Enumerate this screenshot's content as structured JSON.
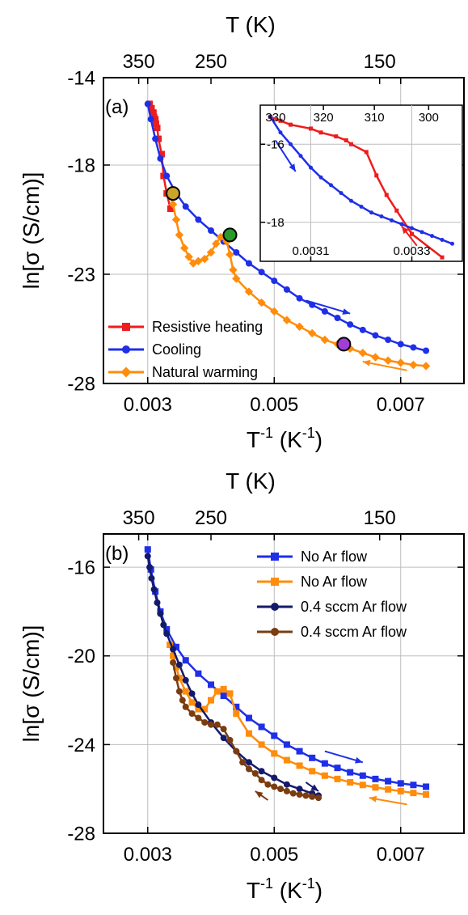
{
  "chart_data": [
    {
      "type": "scatter",
      "panel_label": "(a)",
      "xlabel_main": "T",
      "xlabel_sup": "-1",
      "xlabel_unit": " (K",
      "xlabel_unit_sup": "-1",
      "xlabel_close": ")",
      "ylabel": "ln[σ (S/cm)]",
      "top_xlabel": "T (K)",
      "xlim": [
        0.0023,
        0.008
      ],
      "ylim": [
        -28,
        -14
      ],
      "xticks": [
        0.003,
        0.005,
        0.007
      ],
      "xtick_labels": [
        "0.003",
        "0.005",
        "0.007"
      ],
      "yticks": [
        -28,
        -23,
        -18,
        -14
      ],
      "ytick_labels": [
        "-28",
        "-23",
        "-18",
        "-14"
      ],
      "top_ticks": [
        350,
        250,
        150
      ],
      "top_tick_labels": [
        "350",
        "250",
        "150"
      ],
      "grid": true,
      "legend_position": "bottom-left",
      "series": [
        {
          "name": "Resistive heating",
          "color": "#ee1c1c",
          "marker": "square",
          "x": [
            0.00303,
            0.00306,
            0.00309,
            0.0031,
            0.00312,
            0.00313,
            0.00315,
            0.00317,
            0.00322,
            0.00325,
            0.0033,
            0.00336
          ],
          "y": [
            -15.2,
            -15.4,
            -15.6,
            -15.8,
            -15.9,
            -16.1,
            -16.3,
            -16.8,
            -17.5,
            -18.5,
            -19.3,
            -20.0
          ]
        },
        {
          "name": "Cooling",
          "color": "#1f2fe8",
          "marker": "circle",
          "x": [
            0.003,
            0.00305,
            0.00312,
            0.0032,
            0.0033,
            0.00345,
            0.0036,
            0.0038,
            0.004,
            0.0042,
            0.0044,
            0.0046,
            0.0048,
            0.005,
            0.0052,
            0.0054,
            0.0056,
            0.0058,
            0.006,
            0.0062,
            0.0064,
            0.0066,
            0.0068,
            0.007,
            0.0072,
            0.0074
          ],
          "y": [
            -15.2,
            -15.9,
            -16.8,
            -17.7,
            -18.5,
            -19.3,
            -19.9,
            -20.5,
            -21.0,
            -21.5,
            -22.0,
            -22.5,
            -22.9,
            -23.3,
            -23.7,
            -24.1,
            -24.4,
            -24.7,
            -25.0,
            -25.3,
            -25.55,
            -25.8,
            -26.0,
            -26.2,
            -26.35,
            -26.5
          ]
        },
        {
          "name": "Natural warming",
          "color": "#ff8c0a",
          "marker": "diamond",
          "x": [
            0.00335,
            0.0034,
            0.00345,
            0.0035,
            0.00358,
            0.00365,
            0.00372,
            0.0038,
            0.0039,
            0.004,
            0.00408,
            0.00415,
            0.0042,
            0.00425,
            0.0043,
            0.00435,
            0.0044,
            0.0046,
            0.0048,
            0.005,
            0.0052,
            0.0054,
            0.0056,
            0.0058,
            0.006,
            0.0062,
            0.0064,
            0.0066,
            0.0068,
            0.007,
            0.0072,
            0.0074
          ],
          "y": [
            -19.3,
            -19.8,
            -20.5,
            -21.2,
            -21.8,
            -22.2,
            -22.5,
            -22.4,
            -22.3,
            -22.0,
            -21.6,
            -21.3,
            -21.3,
            -21.5,
            -22.1,
            -22.8,
            -23.2,
            -23.8,
            -24.3,
            -24.7,
            -25.1,
            -25.4,
            -25.7,
            -26.0,
            -26.2,
            -26.4,
            -26.6,
            -26.8,
            -26.95,
            -27.05,
            -27.15,
            -27.2
          ]
        }
      ],
      "highlight_points": [
        {
          "x": 0.0034,
          "y": -19.3,
          "color": "#c9a62a"
        },
        {
          "x": 0.0043,
          "y": -21.2,
          "color": "#2a9a2a"
        },
        {
          "x": 0.0061,
          "y": -26.2,
          "color": "#a23ed6"
        }
      ],
      "annotation_arrows": [
        {
          "color": "#1f2fe8",
          "x1": 0.0055,
          "y1": -24.2,
          "x2": 0.0062,
          "y2": -24.8
        },
        {
          "color": "#ff8c0a",
          "x1": 0.0071,
          "y1": -27.4,
          "x2": 0.0064,
          "y2": -27.0
        }
      ],
      "inset": {
        "xlim": [
          0.003,
          0.0034
        ],
        "ylim": [
          -19.0,
          -15.0
        ],
        "xticks": [
          0.0031,
          0.0033
        ],
        "xtick_labels": [
          "0.0031",
          "0.0033"
        ],
        "yticks": [
          -18,
          -16
        ],
        "ytick_labels": [
          "-18",
          "-16"
        ],
        "top_ticks": [
          330,
          320,
          310,
          300
        ],
        "top_tick_labels": [
          "330",
          "320",
          "310",
          "300"
        ],
        "series": [
          {
            "name": "Resistive heating",
            "color": "#ee1c1c",
            "marker": "square",
            "x": [
              0.00302,
              0.00304,
              0.00306,
              0.0031,
              0.00312,
              0.00315,
              0.00317,
              0.00318,
              0.00321,
              0.00323,
              0.00325,
              0.00327,
              0.0033,
              0.00336
            ],
            "y": [
              -15.3,
              -15.4,
              -15.5,
              -15.6,
              -15.7,
              -15.8,
              -15.9,
              -16.0,
              -16.2,
              -16.8,
              -17.3,
              -17.7,
              -18.3,
              -18.9
            ]
          },
          {
            "name": "Cooling",
            "color": "#1f2fe8",
            "marker": "circle",
            "x": [
              0.00302,
              0.00304,
              0.00306,
              0.00308,
              0.0031,
              0.00312,
              0.00314,
              0.00316,
              0.00318,
              0.0032,
              0.00322,
              0.00324,
              0.00326,
              0.00328,
              0.0033,
              0.00332,
              0.00334,
              0.00336,
              0.00338
            ],
            "y": [
              -15.3,
              -15.7,
              -16.0,
              -16.3,
              -16.6,
              -16.85,
              -17.05,
              -17.25,
              -17.45,
              -17.6,
              -17.75,
              -17.85,
              -17.95,
              -18.05,
              -18.15,
              -18.25,
              -18.35,
              -18.45,
              -18.55
            ]
          }
        ],
        "annotation_arrows": [
          {
            "color": "#1f2fe8",
            "x1": 0.00303,
            "y1": -15.9,
            "x2": 0.00307,
            "y2": -16.7
          },
          {
            "color": "#ee1c1c",
            "x1": 0.00331,
            "y1": -18.6,
            "x2": 0.00328,
            "y2": -18.1
          }
        ]
      }
    },
    {
      "type": "scatter",
      "panel_label": "(b)",
      "xlabel_main": "T",
      "xlabel_sup": "-1",
      "xlabel_unit": " (K",
      "xlabel_unit_sup": "-1",
      "xlabel_close": ")",
      "ylabel": "ln[σ (S/cm)]",
      "top_xlabel": "T (K)",
      "xlim": [
        0.0023,
        0.008
      ],
      "ylim": [
        -28,
        -14.5
      ],
      "xticks": [
        0.003,
        0.005,
        0.007
      ],
      "xtick_labels": [
        "0.003",
        "0.005",
        "0.007"
      ],
      "yticks": [
        -28,
        -24,
        -20,
        -16
      ],
      "ytick_labels": [
        "-28",
        "-24",
        "-20",
        "-16"
      ],
      "top_ticks": [
        350,
        250,
        150
      ],
      "top_tick_labels": [
        "350",
        "250",
        "150"
      ],
      "grid": true,
      "legend_position": "top-right",
      "series": [
        {
          "name": "No Ar flow",
          "color": "#1f2fe8",
          "marker": "square",
          "x": [
            0.003,
            0.00305,
            0.00312,
            0.0032,
            0.0033,
            0.00345,
            0.0036,
            0.0038,
            0.004,
            0.0042,
            0.0044,
            0.0046,
            0.0048,
            0.005,
            0.0052,
            0.0054,
            0.0056,
            0.0058,
            0.006,
            0.0062,
            0.0064,
            0.0066,
            0.0068,
            0.007,
            0.0072,
            0.0074
          ],
          "y": [
            -15.2,
            -16.1,
            -17.1,
            -18.0,
            -18.8,
            -19.6,
            -20.2,
            -20.8,
            -21.3,
            -21.8,
            -22.3,
            -22.8,
            -23.2,
            -23.6,
            -24.0,
            -24.3,
            -24.6,
            -24.85,
            -25.05,
            -25.25,
            -25.4,
            -25.55,
            -25.65,
            -25.75,
            -25.82,
            -25.9
          ]
        },
        {
          "name": "No Ar flow",
          "color": "#ff8c0a",
          "marker": "square",
          "x": [
            0.00335,
            0.0034,
            0.00345,
            0.0035,
            0.0036,
            0.0037,
            0.0038,
            0.0039,
            0.004,
            0.0041,
            0.0042,
            0.0043,
            0.0044,
            0.0046,
            0.0048,
            0.005,
            0.0052,
            0.0054,
            0.0056,
            0.0058,
            0.006,
            0.0062,
            0.0064,
            0.0066,
            0.0068,
            0.007,
            0.0072,
            0.0074
          ],
          "y": [
            -19.5,
            -20.0,
            -20.5,
            -21.0,
            -21.6,
            -22.1,
            -22.4,
            -22.4,
            -22.0,
            -21.6,
            -21.5,
            -21.7,
            -22.6,
            -23.5,
            -24.0,
            -24.4,
            -24.7,
            -24.95,
            -25.2,
            -25.4,
            -25.55,
            -25.7,
            -25.82,
            -25.93,
            -26.02,
            -26.1,
            -26.18,
            -26.25
          ]
        },
        {
          "name": "0.4 sccm Ar flow",
          "color": "#141a6b",
          "marker": "circle",
          "x": [
            0.003,
            0.00303,
            0.00306,
            0.0031,
            0.00315,
            0.0032,
            0.00325,
            0.0033,
            0.0034,
            0.0035,
            0.0036,
            0.0037,
            0.0038,
            0.004,
            0.0042,
            0.0044,
            0.0046,
            0.0048,
            0.005,
            0.0052,
            0.0054,
            0.0056,
            0.0057
          ],
          "y": [
            -15.5,
            -16.0,
            -16.5,
            -17.0,
            -17.6,
            -18.1,
            -18.6,
            -19.0,
            -19.7,
            -20.4,
            -21.1,
            -21.7,
            -22.2,
            -23.0,
            -23.7,
            -24.3,
            -24.8,
            -25.2,
            -25.5,
            -25.8,
            -26.0,
            -26.2,
            -26.3
          ]
        },
        {
          "name": "0.4 sccm Ar flow",
          "color": "#7a3d10",
          "marker": "circle",
          "x": [
            0.0034,
            0.00345,
            0.0035,
            0.00355,
            0.0036,
            0.0037,
            0.0038,
            0.0039,
            0.004,
            0.0041,
            0.0042,
            0.0043,
            0.0044,
            0.0045,
            0.0046,
            0.0047,
            0.0048,
            0.0049,
            0.005,
            0.0051,
            0.0052,
            0.0053,
            0.0054,
            0.0055,
            0.0056,
            0.0057
          ],
          "y": [
            -20.3,
            -21.0,
            -21.6,
            -22.0,
            -22.3,
            -22.6,
            -22.8,
            -23.0,
            -23.1,
            -23.1,
            -23.3,
            -23.8,
            -24.3,
            -24.8,
            -25.1,
            -25.3,
            -25.6,
            -25.8,
            -25.9,
            -26.0,
            -26.1,
            -26.2,
            -26.25,
            -26.3,
            -26.35,
            -26.4
          ]
        }
      ],
      "annotation_arrows": [
        {
          "color": "#1f2fe8",
          "x1": 0.0058,
          "y1": -24.3,
          "x2": 0.0064,
          "y2": -24.8
        },
        {
          "color": "#ff8c0a",
          "x1": 0.0071,
          "y1": -26.7,
          "x2": 0.0065,
          "y2": -26.4
        },
        {
          "color": "#141a6b",
          "x1": 0.0055,
          "y1": -25.7,
          "x2": 0.0057,
          "y2": -26.1
        },
        {
          "color": "#7a3d10",
          "x1": 0.0049,
          "y1": -26.5,
          "x2": 0.0047,
          "y2": -26.1
        }
      ]
    }
  ]
}
